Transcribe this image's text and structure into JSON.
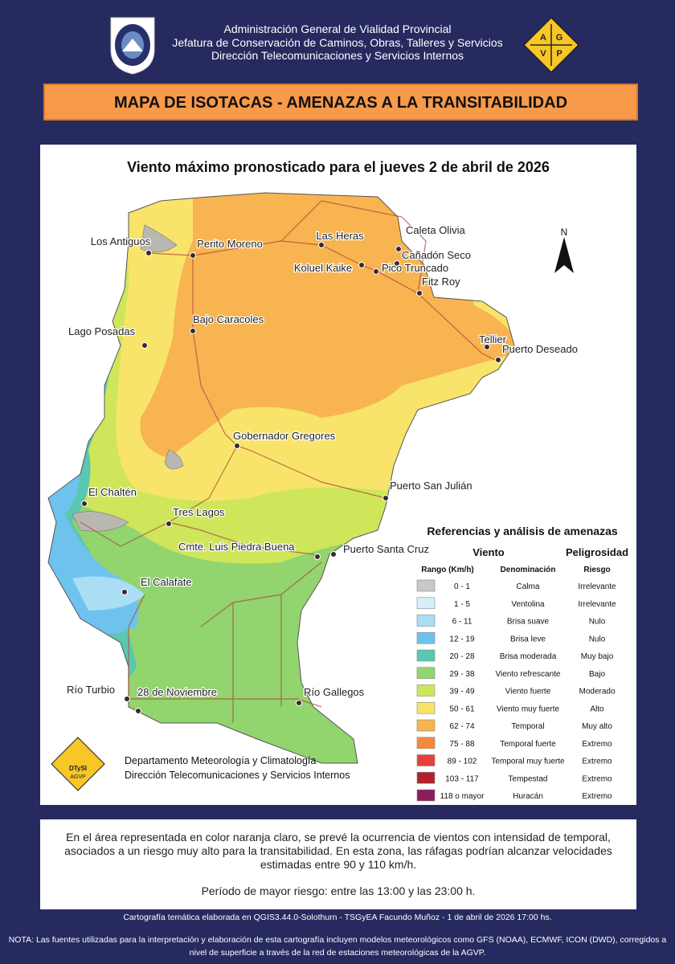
{
  "header": {
    "lines": [
      "Administración General de Vialidad Provincial",
      "Jefatura de Conservación de Caminos, Obras, Talleres y Servicios",
      "Dirección Telecomunicaciones y Servicios Internos"
    ],
    "logo_letters": [
      "A",
      "G",
      "V",
      "P"
    ]
  },
  "banner": {
    "title": "MAPA DE ISOTACAS - AMENAZAS A LA TRANSITABILIDAD"
  },
  "map": {
    "title": "Viento máximo pronosticado para el jueves 2 de abril de 2026",
    "north": "N",
    "places": [
      "Los Antiguos",
      "Perito Moreno",
      "Las Heras",
      "Caleta Olivia",
      "Cañadón Seco",
      "Koluel Kaike",
      "Pico Truncado",
      "Fitz Roy",
      "Lago Posadas",
      "Bajo Caracoles",
      "Tellier",
      "Puerto Deseado",
      "Gobernador Gregores",
      "Puerto San Julián",
      "El Chaltén",
      "Tres Lagos",
      "Cmte. Luis Piedra Buena",
      "Puerto Santa Cruz",
      "El Calafate",
      "Río Turbio",
      "28 de Noviembre",
      "Río Gallegos"
    ],
    "credit": [
      "Departamento Meteorología y Climatología",
      "Dirección Telecomunicaciones y Servicios Internos"
    ],
    "badge": [
      "DTySI",
      "AGVP"
    ]
  },
  "legend": {
    "title": "Referencias y análisis de amenazas",
    "groups": [
      "Viento",
      "Peligrosidad"
    ],
    "columns": [
      "Rango (Km/h)",
      "Denominación",
      "Riesgo"
    ],
    "rows": [
      {
        "range": "0 - 1",
        "name": "Calma",
        "risk": "Irrelevante",
        "color": "#c8c8c8"
      },
      {
        "range": "1 - 5",
        "name": "Ventolina",
        "risk": "Irrelevante",
        "color": "#d6f0fb"
      },
      {
        "range": "6 - 11",
        "name": "Brisa suave",
        "risk": "Nulo",
        "color": "#a9def5"
      },
      {
        "range": "12 - 19",
        "name": "Brisa leve",
        "risk": "Nulo",
        "color": "#6ec3ee"
      },
      {
        "range": "20 - 28",
        "name": "Brisa moderada",
        "risk": "Muy bajo",
        "color": "#5cc7b0"
      },
      {
        "range": "29 - 38",
        "name": "Viento refrescante",
        "risk": "Bajo",
        "color": "#92d46e"
      },
      {
        "range": "39 - 49",
        "name": "Viento fuerte",
        "risk": "Moderado",
        "color": "#cfe65a"
      },
      {
        "range": "50 - 61",
        "name": "Viento muy fuerte",
        "risk": "Alto",
        "color": "#f8e46a"
      },
      {
        "range": "62 - 74",
        "name": "Temporal",
        "risk": "Muy alto",
        "color": "#f7b451"
      },
      {
        "range": "75 - 88",
        "name": "Temporal fuerte",
        "risk": "Extremo",
        "color": "#f58a3c"
      },
      {
        "range": "89 - 102",
        "name": "Temporal muy fuerte",
        "risk": "Extremo",
        "color": "#e6403a"
      },
      {
        "range": "103 - 117",
        "name": "Tempestad",
        "risk": "Extremo",
        "color": "#b3222a"
      },
      {
        "range": "118 o mayor",
        "name": "Huracán",
        "risk": "Extremo",
        "color": "#8b1d5e"
      }
    ]
  },
  "info": {
    "text": "En el área representada en color naranja claro, se prevé la ocurrencia de vientos con intensidad de temporal, asociados a un riesgo muy alto para la transitabilidad. En esta zona, las ráfagas podrían alcanzar velocidades estimadas entre 90 y 110 km/h.",
    "period": "Período de mayor riesgo: entre las 13:00 y las 23:00 h."
  },
  "footer": {
    "credit": "Cartografía temática elaborada en QGIS3.44.0-Solothurn - TSGyEA Facundo Muñoz - 1 de abril de 2026 17:00 hs.",
    "note": "NOTA: Las fuentes utilizadas para la interpretación y elaboración de esta cartografía incluyen modelos meteorológicos como GFS (NOAA), ECMWF, ICON (DWD), corregidos a nivel de superficie a través de la red de estaciones meteorológicas de la AGVP."
  }
}
